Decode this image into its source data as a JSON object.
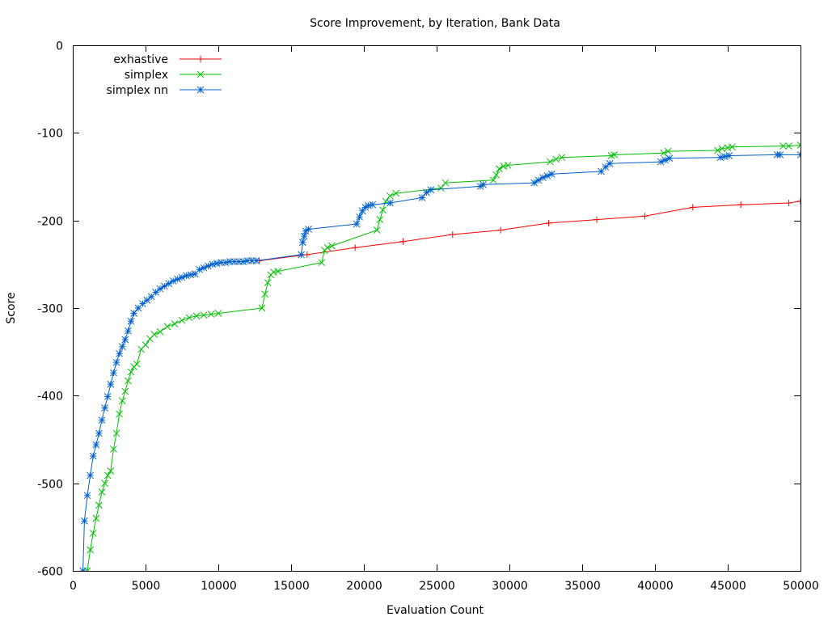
{
  "chart_data": {
    "type": "line",
    "title": "Score Improvement, by Iteration, Bank Data",
    "xlabel": "Evaluation Count",
    "ylabel": "Score",
    "xlim": [
      0,
      50000
    ],
    "ylim": [
      -600,
      0
    ],
    "xticks": [
      0,
      5000,
      10000,
      15000,
      20000,
      25000,
      30000,
      35000,
      40000,
      45000,
      50000
    ],
    "yticks": [
      0,
      -100,
      -200,
      -300,
      -400,
      -500,
      -600
    ],
    "grid": false,
    "legend_position": "top-left",
    "series": [
      {
        "name": "exhastive",
        "color": "#ff0000",
        "marker": "plus",
        "x": [
          12800,
          16100,
          19400,
          22700,
          26100,
          29400,
          32700,
          36000,
          39300,
          42600,
          45900,
          49200,
          50000
        ],
        "y": [
          -246,
          -239,
          -231,
          -224,
          -216,
          -211,
          -203,
          -199,
          -195,
          -185,
          -182,
          -180,
          -178
        ]
      },
      {
        "name": "simplex",
        "color": "#00c000",
        "marker": "x",
        "x": [
          1000,
          1200,
          1400,
          1600,
          1800,
          2000,
          2200,
          2400,
          2600,
          2800,
          3000,
          3200,
          3400,
          3600,
          3800,
          4000,
          4200,
          4400,
          4700,
          5000,
          5300,
          5600,
          6000,
          6500,
          7000,
          7500,
          8000,
          8500,
          9000,
          9500,
          10000,
          13000,
          13200,
          13400,
          13600,
          13800,
          14100,
          17100,
          17300,
          17500,
          17800,
          20900,
          21100,
          21300,
          21500,
          21800,
          22200,
          25300,
          25600,
          28900,
          29100,
          29300,
          29600,
          29900,
          32800,
          33200,
          33600,
          37000,
          37200,
          40600,
          40900,
          44300,
          44600,
          45000,
          45300,
          48800,
          49200,
          50000
        ],
        "y": [
          -600,
          -576,
          -557,
          -540,
          -525,
          -510,
          -500,
          -491,
          -486,
          -461,
          -443,
          -421,
          -406,
          -395,
          -383,
          -373,
          -367,
          -364,
          -347,
          -342,
          -335,
          -330,
          -327,
          -321,
          -318,
          -314,
          -311,
          -309,
          -308,
          -307,
          -306,
          -300,
          -284,
          -271,
          -262,
          -259,
          -258,
          -248,
          -234,
          -231,
          -229,
          -211,
          -199,
          -188,
          -178,
          -172,
          -169,
          -163,
          -157,
          -154,
          -148,
          -141,
          -138,
          -137,
          -133,
          -130,
          -128,
          -126,
          -125,
          -123,
          -121,
          -120,
          -118,
          -117,
          -116,
          -115,
          -115,
          -114
        ]
      },
      {
        "name": "simplex nn",
        "color": "#0060d0",
        "marker": "star",
        "x": [
          700,
          800,
          1000,
          1200,
          1400,
          1600,
          1800,
          2000,
          2200,
          2400,
          2600,
          2800,
          3000,
          3200,
          3400,
          3600,
          3800,
          4000,
          4200,
          4500,
          4800,
          5100,
          5400,
          5700,
          6000,
          6300,
          6600,
          6900,
          7200,
          7500,
          7800,
          8100,
          8400,
          8700,
          9000,
          9300,
          9600,
          9900,
          10200,
          10500,
          10800,
          11100,
          11400,
          11700,
          12000,
          12300,
          12600,
          15700,
          15800,
          15900,
          16000,
          16200,
          19500,
          19700,
          19900,
          20100,
          20300,
          20600,
          21800,
          24000,
          24300,
          24600,
          28000,
          28200,
          31700,
          32000,
          32300,
          32600,
          32900,
          36300,
          36600,
          36900,
          40400,
          40700,
          41000,
          44500,
          44800,
          45100,
          48400,
          48600,
          50000
        ],
        "y": [
          -600,
          -543,
          -514,
          -491,
          -469,
          -456,
          -443,
          -428,
          -414,
          -401,
          -387,
          -374,
          -362,
          -352,
          -344,
          -336,
          -326,
          -315,
          -306,
          -300,
          -295,
          -291,
          -287,
          -282,
          -278,
          -275,
          -272,
          -269,
          -267,
          -265,
          -263,
          -262,
          -261,
          -256,
          -254,
          -252,
          -250,
          -249,
          -248,
          -248,
          -247,
          -247,
          -247,
          -247,
          -246,
          -246,
          -246,
          -239,
          -225,
          -218,
          -212,
          -210,
          -204,
          -196,
          -189,
          -185,
          -183,
          -182,
          -180,
          -174,
          -168,
          -165,
          -161,
          -159,
          -157,
          -154,
          -151,
          -149,
          -147,
          -144,
          -139,
          -135,
          -133,
          -131,
          -129,
          -128,
          -127,
          -126,
          -125,
          -125,
          -125
        ]
      }
    ]
  }
}
